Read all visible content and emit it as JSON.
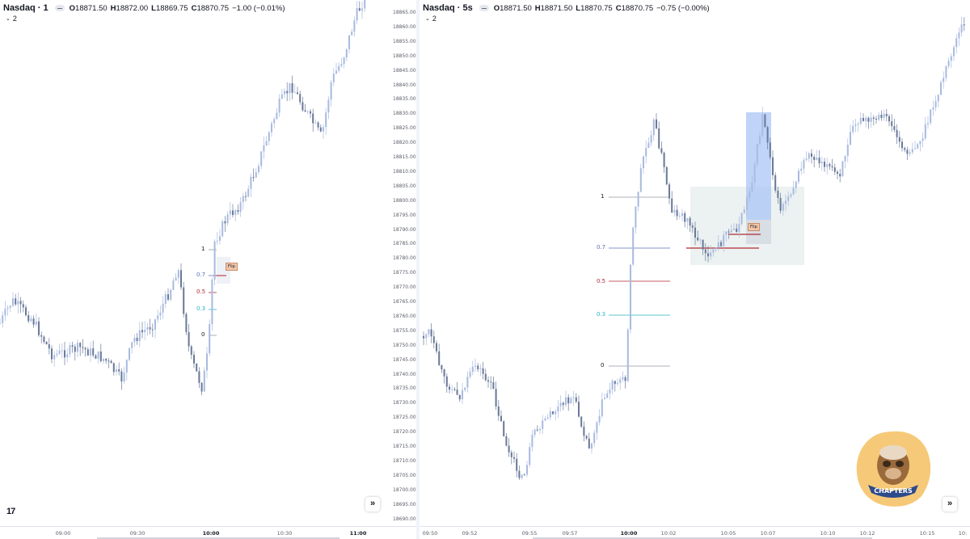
{
  "left_pane": {
    "symbol": "Nasdaq · 1",
    "ohlc": {
      "o_key": "O",
      "o": "18871.50",
      "h_key": "H",
      "h": "18872.00",
      "l_key": "L",
      "l": "18869.75",
      "c_key": "C",
      "c": "18870.75"
    },
    "change": "−1.00 (−0.01%)",
    "indicator_count": "2",
    "y_axis_ticks": [
      "18865.00",
      "18860.00",
      "18855.00",
      "18850.00",
      "18845.00",
      "18840.00",
      "18835.00",
      "18830.00",
      "18825.00",
      "18820.00",
      "18815.00",
      "18810.00",
      "18805.00",
      "18800.00",
      "18795.00",
      "18790.00",
      "18785.00",
      "18780.00",
      "18775.00",
      "18770.00",
      "18765.00",
      "18760.00",
      "18755.00",
      "18750.00",
      "18745.00",
      "18740.00",
      "18735.00",
      "18730.00",
      "18725.00",
      "18720.00",
      "18715.00",
      "18710.00",
      "18705.00",
      "18700.00",
      "18695.00",
      "18690.00"
    ],
    "x_axis_ticks": [
      {
        "label": "09:00",
        "bold": true
      },
      {
        "label": "09:30",
        "bold": false
      },
      {
        "label": "10:00",
        "bold": true
      },
      {
        "label": "10:30",
        "bold": false
      },
      {
        "label": "11:00",
        "bold": true
      }
    ],
    "fib_levels": [
      {
        "label": "1",
        "color": "#6a6d78"
      },
      {
        "label": "0.7",
        "color": "#5b6fb5"
      },
      {
        "label": "0.5",
        "color": "#b22833"
      },
      {
        "label": "0.3",
        "color": "#26b5c8"
      },
      {
        "label": "0",
        "color": "#6a6d78"
      }
    ],
    "flip_label": "Flip",
    "logo": "17",
    "go_button": "»"
  },
  "right_pane": {
    "symbol": "Nasdaq · 5s",
    "ohlc": {
      "o_key": "O",
      "o": "18871.50",
      "h_key": "H",
      "h": "18871.50",
      "l_key": "L",
      "l": "18870.75",
      "c_key": "C",
      "c": "18870.75"
    },
    "change": "−0.75 (−0.00%)",
    "indicator_count": "2",
    "x_axis_ticks": [
      {
        "label": "09:50",
        "bold": false
      },
      {
        "label": "09:52",
        "bold": false
      },
      {
        "label": "09:55",
        "bold": false
      },
      {
        "label": "09:57",
        "bold": false
      },
      {
        "label": "10:00",
        "bold": true
      },
      {
        "label": "10:02",
        "bold": false
      },
      {
        "label": "10:05",
        "bold": false
      },
      {
        "label": "10:07",
        "bold": false
      },
      {
        "label": "10:10",
        "bold": false
      },
      {
        "label": "10:12",
        "bold": false
      },
      {
        "label": "10:15",
        "bold": false
      },
      {
        "label": "10:",
        "bold": false
      }
    ],
    "fib_levels": [
      {
        "label": "1",
        "color": "#6a6d78"
      },
      {
        "label": "0.7",
        "color": "#5b6fb5"
      },
      {
        "label": "0.5",
        "color": "#b22833"
      },
      {
        "label": "0.3",
        "color": "#26b5c8"
      },
      {
        "label": "0",
        "color": "#6a6d78"
      }
    ],
    "flip_label": "Flip",
    "go_button": "»",
    "badge_text": "CHAPTERS"
  },
  "colors": {
    "candle_up": "#a9bbe0",
    "candle_down": "#6b7a99",
    "fib_line": "#9598a1",
    "zone_green": "#dfeae8",
    "zone_blue": "#a9c6f5",
    "badge": "#f6c978"
  }
}
